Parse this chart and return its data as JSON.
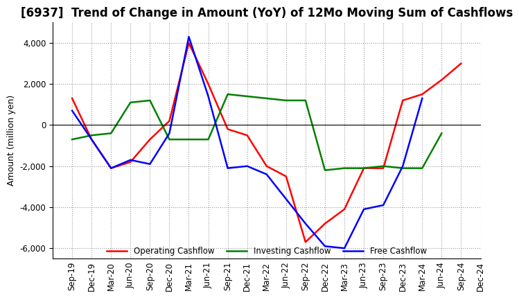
{
  "title": "[6937]  Trend of Change in Amount (YoY) of 12Mo Moving Sum of Cashflows",
  "ylabel": "Amount (million yen)",
  "x_labels": [
    "Sep-19",
    "Dec-19",
    "Mar-20",
    "Jun-20",
    "Sep-20",
    "Dec-20",
    "Mar-21",
    "Jun-21",
    "Sep-21",
    "Dec-21",
    "Mar-22",
    "Jun-22",
    "Sep-22",
    "Dec-22",
    "Mar-23",
    "Jun-23",
    "Sep-23",
    "Dec-23",
    "Mar-24",
    "Jun-24",
    "Sep-24",
    "Dec-24"
  ],
  "operating": [
    1300,
    -700,
    -2100,
    -1800,
    -700,
    200,
    4000,
    2000,
    -200,
    -500,
    -2000,
    -2500,
    -5700,
    -4800,
    -4100,
    -2100,
    -2100,
    1200,
    1500,
    2200,
    3000,
    null
  ],
  "investing": [
    -700,
    -500,
    -400,
    1100,
    1200,
    -700,
    -700,
    -700,
    1500,
    1400,
    1300,
    1200,
    1200,
    -2200,
    -2100,
    -2100,
    -2000,
    -2100,
    -2100,
    -400,
    null,
    null
  ],
  "free": [
    700,
    -700,
    -2100,
    -1700,
    -1900,
    -400,
    4300,
    1400,
    -2100,
    -2000,
    -2400,
    -3600,
    -4800,
    -5900,
    -6000,
    -4100,
    -3900,
    -2000,
    1300,
    null,
    null,
    null
  ],
  "ylim": [
    -6500,
    5000
  ],
  "yticks": [
    -6000,
    -4000,
    -2000,
    0,
    2000,
    4000
  ],
  "line_colors": {
    "operating": "#ff0000",
    "investing": "#008000",
    "free": "#0000ff"
  },
  "legend_labels": [
    "Operating Cashflow",
    "Investing Cashflow",
    "Free Cashflow"
  ],
  "title_fontsize": 12,
  "axis_fontsize": 9,
  "tick_fontsize": 8.5
}
